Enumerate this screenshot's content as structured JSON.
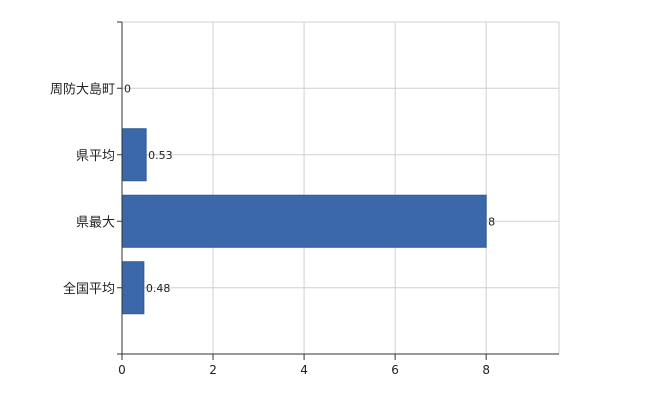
{
  "chart_data": {
    "type": "bar",
    "orientation": "horizontal",
    "categories": [
      "周防大島町",
      "県平均",
      "県最大",
      "全国平均"
    ],
    "values": [
      0,
      0.53,
      8,
      0.48
    ],
    "data_labels": [
      "0",
      "0.53",
      "8",
      "0.48"
    ],
    "title": "",
    "xlabel": "",
    "ylabel": "",
    "xlim": [
      0,
      9.6
    ],
    "x_ticks": [
      0,
      2,
      4,
      6,
      8
    ],
    "x_tick_labels": [
      "0",
      "2",
      "4",
      "6",
      "8"
    ],
    "grid": true,
    "legend": "none",
    "colors": {
      "bar": "#3a68a8",
      "bar_stroke": "#2f5a94",
      "grid": "#d0d0d0",
      "axis": "#333333"
    }
  }
}
